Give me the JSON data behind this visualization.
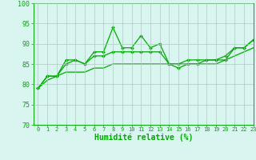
{
  "title": "",
  "xlabel": "Humidité relative (%)",
  "ylabel": "",
  "background_color": "#d8f5f0",
  "grid_color": "#b0c8c0",
  "line_color": "#00aa00",
  "ylim": [
    70,
    100
  ],
  "xlim": [
    -0.5,
    23
  ],
  "yticks": [
    70,
    75,
    80,
    85,
    90,
    95,
    100
  ],
  "xticks": [
    0,
    1,
    2,
    3,
    4,
    5,
    6,
    7,
    8,
    9,
    10,
    11,
    12,
    13,
    14,
    15,
    16,
    17,
    18,
    19,
    20,
    21,
    22,
    23
  ],
  "series1_x": [
    0,
    1,
    2,
    3,
    4,
    5,
    6,
    7,
    8,
    9,
    10,
    11,
    12,
    13,
    14,
    15,
    16,
    17,
    18,
    19,
    20,
    21,
    22,
    23
  ],
  "series1_y": [
    79,
    82,
    82,
    86,
    86,
    85,
    88,
    88,
    94,
    89,
    89,
    92,
    89,
    90,
    85,
    85,
    86,
    86,
    86,
    86,
    86,
    89,
    89,
    91
  ],
  "series2_x": [
    0,
    1,
    2,
    3,
    4,
    5,
    6,
    7,
    8,
    9,
    10,
    11,
    12,
    13,
    14,
    15,
    16,
    17,
    18,
    19,
    20,
    21,
    22,
    23
  ],
  "series2_y": [
    79,
    82,
    82,
    85,
    86,
    85,
    87,
    87,
    88,
    88,
    88,
    88,
    88,
    88,
    85,
    84,
    85,
    85,
    86,
    86,
    87,
    89,
    89,
    91
  ],
  "series3_x": [
    0,
    1,
    2,
    3,
    4,
    5,
    6,
    7,
    8,
    9,
    10,
    11,
    12,
    13,
    14,
    15,
    16,
    17,
    18,
    19,
    20,
    21,
    22,
    23
  ],
  "series3_y": [
    79,
    81,
    82,
    83,
    83,
    83,
    84,
    84,
    85,
    85,
    85,
    85,
    85,
    85,
    85,
    85,
    85,
    85,
    85,
    85,
    86,
    87,
    88,
    89
  ],
  "xlabel_fontsize": 7,
  "tick_fontsize": 5,
  "marker_size": 2.0,
  "line_width": 0.9
}
